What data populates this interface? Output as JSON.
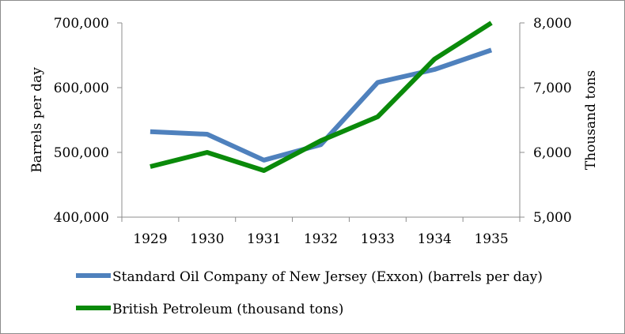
{
  "chart_data": {
    "type": "line",
    "categories": [
      "1929",
      "1930",
      "1931",
      "1932",
      "1933",
      "1934",
      "1935"
    ],
    "y_left": {
      "label": "Barrels per day",
      "lim": [
        400000,
        700000
      ],
      "ticks": [
        "400,000",
        "500,000",
        "600,000",
        "700,000"
      ],
      "tick_values": [
        400000,
        500000,
        600000,
        700000
      ]
    },
    "y_right": {
      "label": "Thousand tons",
      "lim": [
        5000,
        8000
      ],
      "ticks": [
        "5,000",
        "6,000",
        "7,000",
        "8,000"
      ],
      "tick_values": [
        5000,
        6000,
        7000,
        8000
      ]
    },
    "series": [
      {
        "name": "Standard Oil Company of New Jersey (Exxon) (barrels per day)",
        "axis": "left",
        "color": "#4f81bd",
        "values": [
          532000,
          528000,
          488000,
          512000,
          608000,
          628000,
          658000
        ]
      },
      {
        "name": "British Petroleum (thousand tons)",
        "axis": "right",
        "color": "#0a8a0a",
        "values": [
          5780,
          6000,
          5720,
          6180,
          6550,
          7440,
          8000
        ]
      }
    ],
    "grid": false,
    "legend_position": "bottom"
  }
}
